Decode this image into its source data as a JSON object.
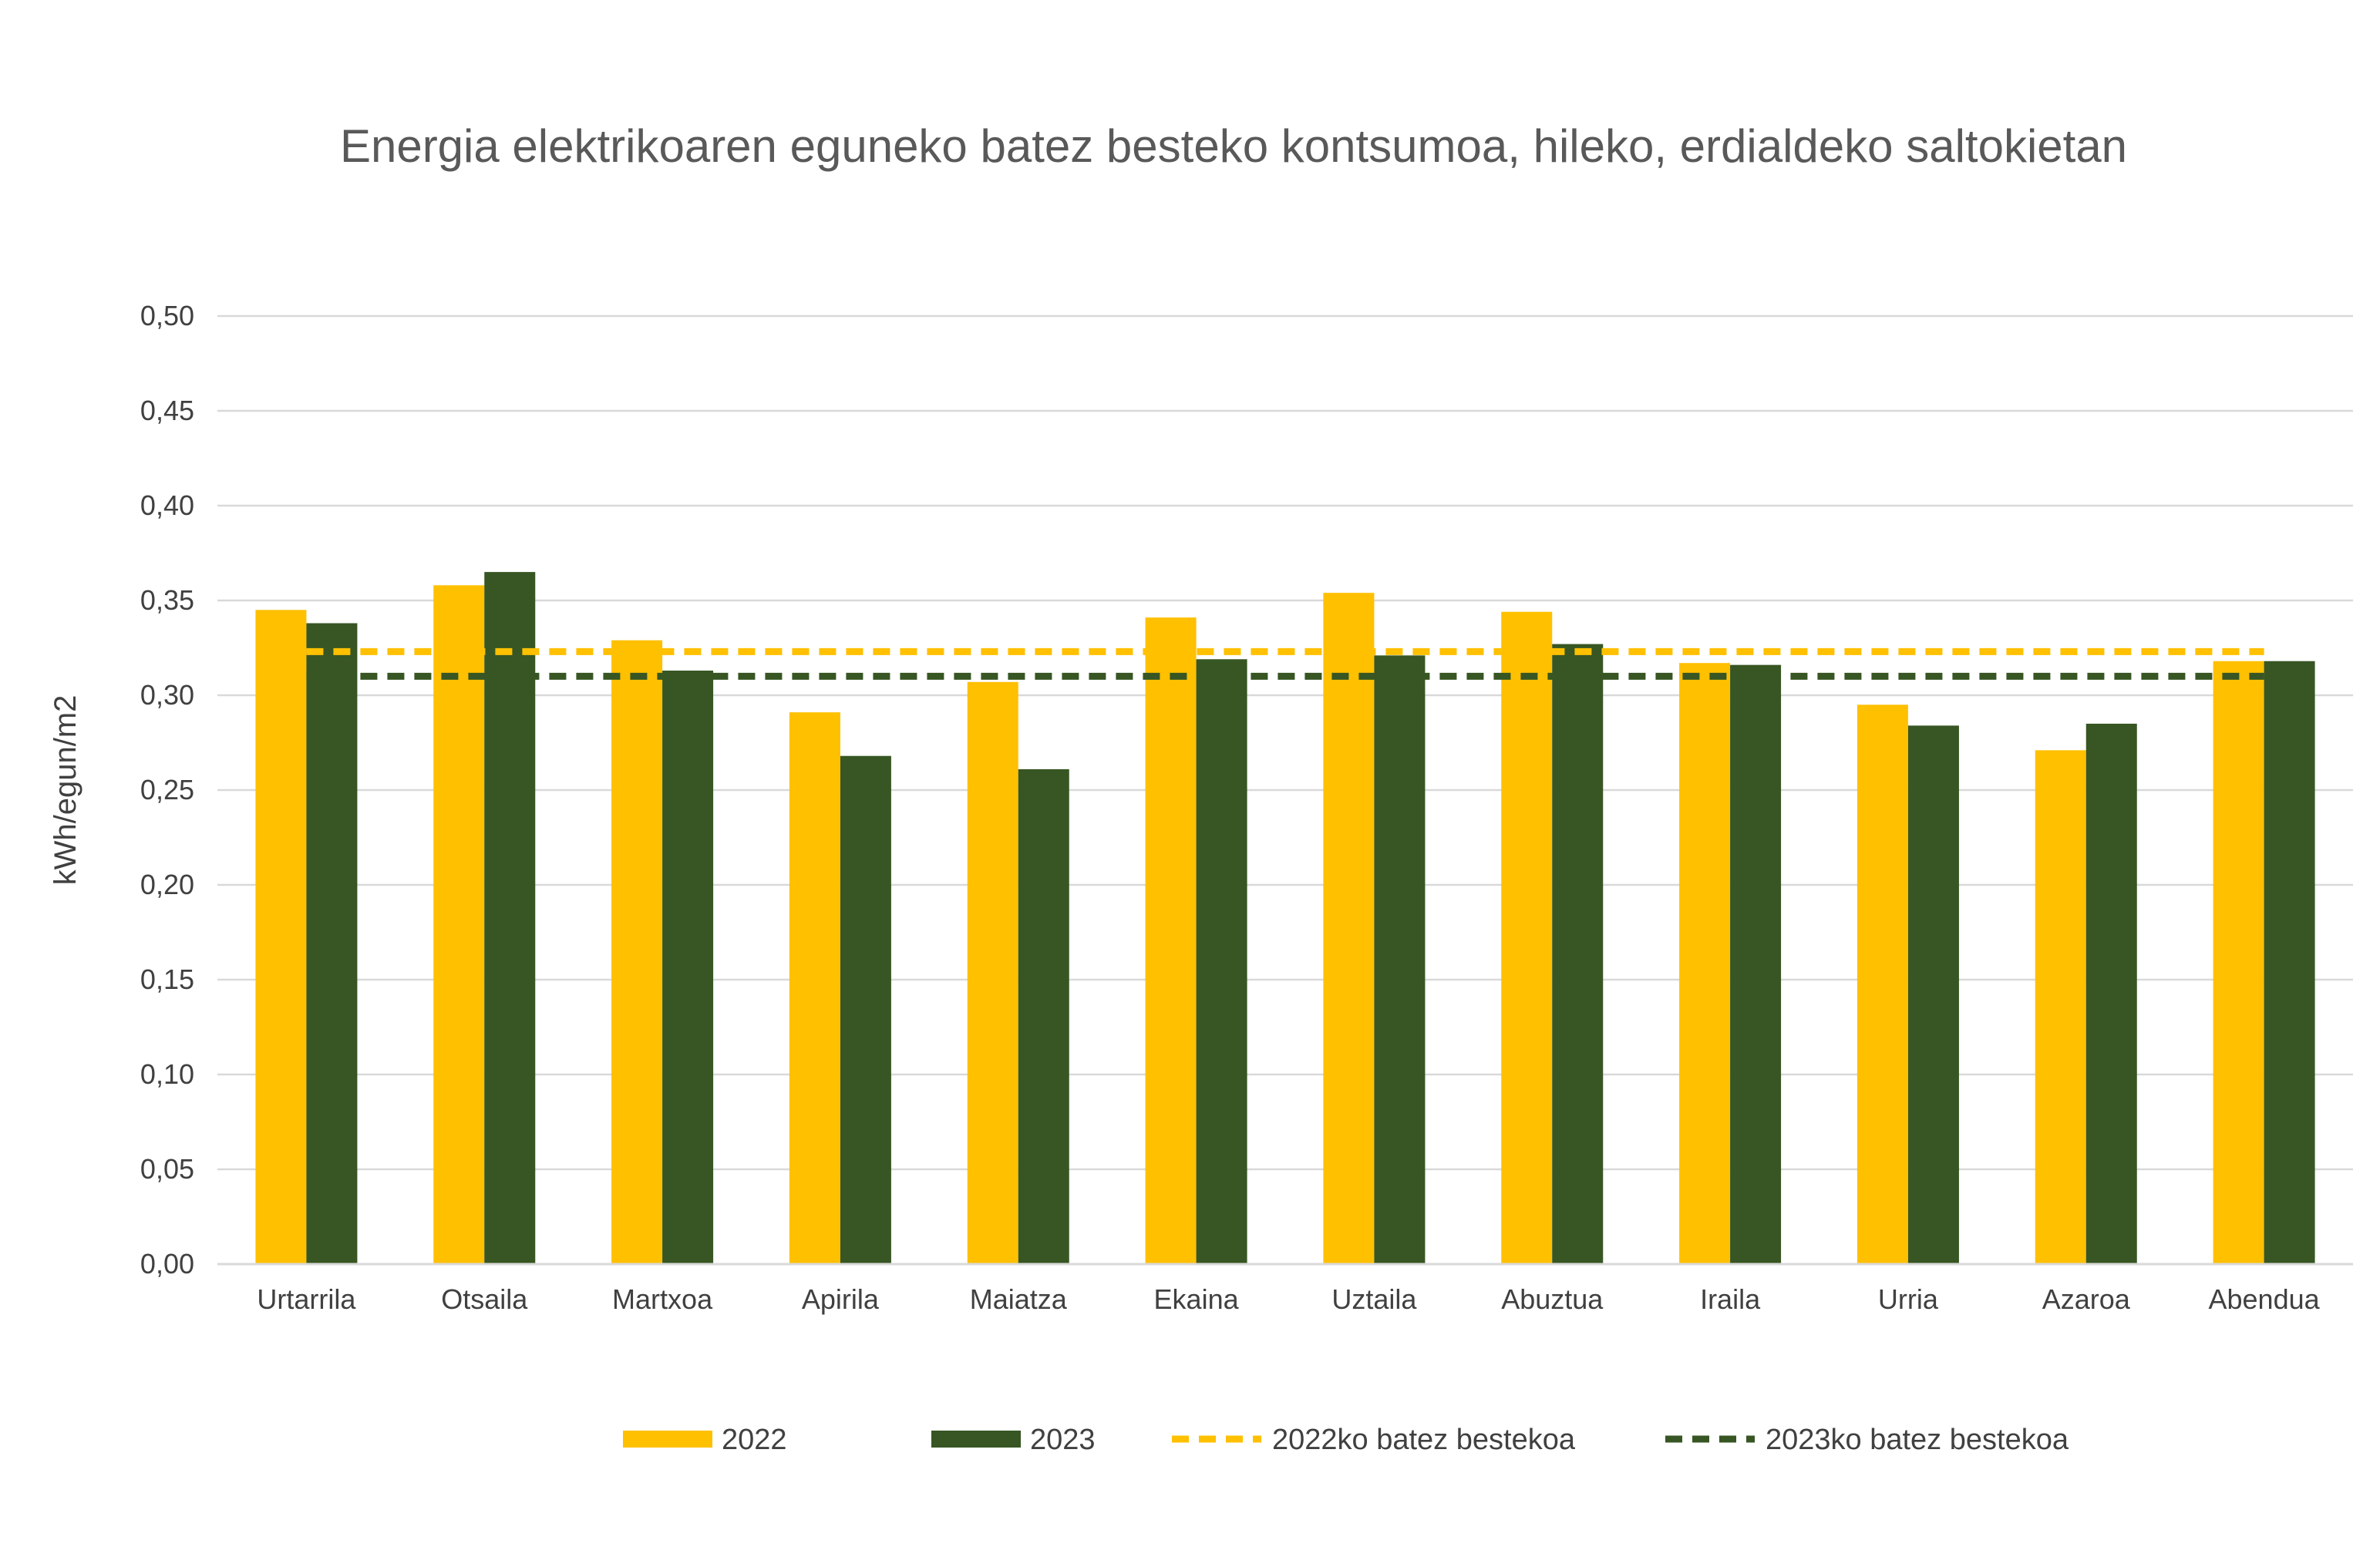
{
  "chart_data": {
    "type": "bar",
    "title": "Energia elektrikoaren eguneko batez besteko kontsumoa, hileko, erdialdeko saltokietan",
    "xlabel": "",
    "ylabel": "kWh/egun/m2",
    "ylim": [
      0,
      0.5
    ],
    "y_ticks": [
      "0,00",
      "0,05",
      "0,10",
      "0,15",
      "0,20",
      "0,25",
      "0,30",
      "0,35",
      "0,40",
      "0,45",
      "0,50"
    ],
    "grid": true,
    "legend_position": "bottom",
    "categories": [
      "Urtarrila",
      "Otsaila",
      "Martxoa",
      "Apirila",
      "Maiatza",
      "Ekaina",
      "Uztaila",
      "Abuztua",
      "Iraila",
      "Urria",
      "Azaroa",
      "Abendua"
    ],
    "series": [
      {
        "name": "2022",
        "type": "bar",
        "color": "#FFC000",
        "values": [
          0.345,
          0.358,
          0.329,
          0.291,
          0.307,
          0.341,
          0.354,
          0.344,
          0.317,
          0.295,
          0.271,
          0.318
        ]
      },
      {
        "name": "2023",
        "type": "bar",
        "color": "#375623",
        "values": [
          0.338,
          0.365,
          0.313,
          0.268,
          0.261,
          0.319,
          0.321,
          0.327,
          0.316,
          0.284,
          0.285,
          0.318
        ]
      },
      {
        "name": "2022ko batez bestekoa",
        "type": "line",
        "style": "dashed",
        "color": "#FFC000",
        "values": [
          0.323,
          0.323,
          0.323,
          0.323,
          0.323,
          0.323,
          0.323,
          0.323,
          0.323,
          0.323,
          0.323,
          0.323
        ]
      },
      {
        "name": "2023ko batez bestekoa",
        "type": "line",
        "style": "dashed",
        "color": "#375623",
        "values": [
          0.31,
          0.31,
          0.31,
          0.31,
          0.31,
          0.31,
          0.31,
          0.31,
          0.31,
          0.31,
          0.31,
          0.31
        ]
      }
    ]
  }
}
